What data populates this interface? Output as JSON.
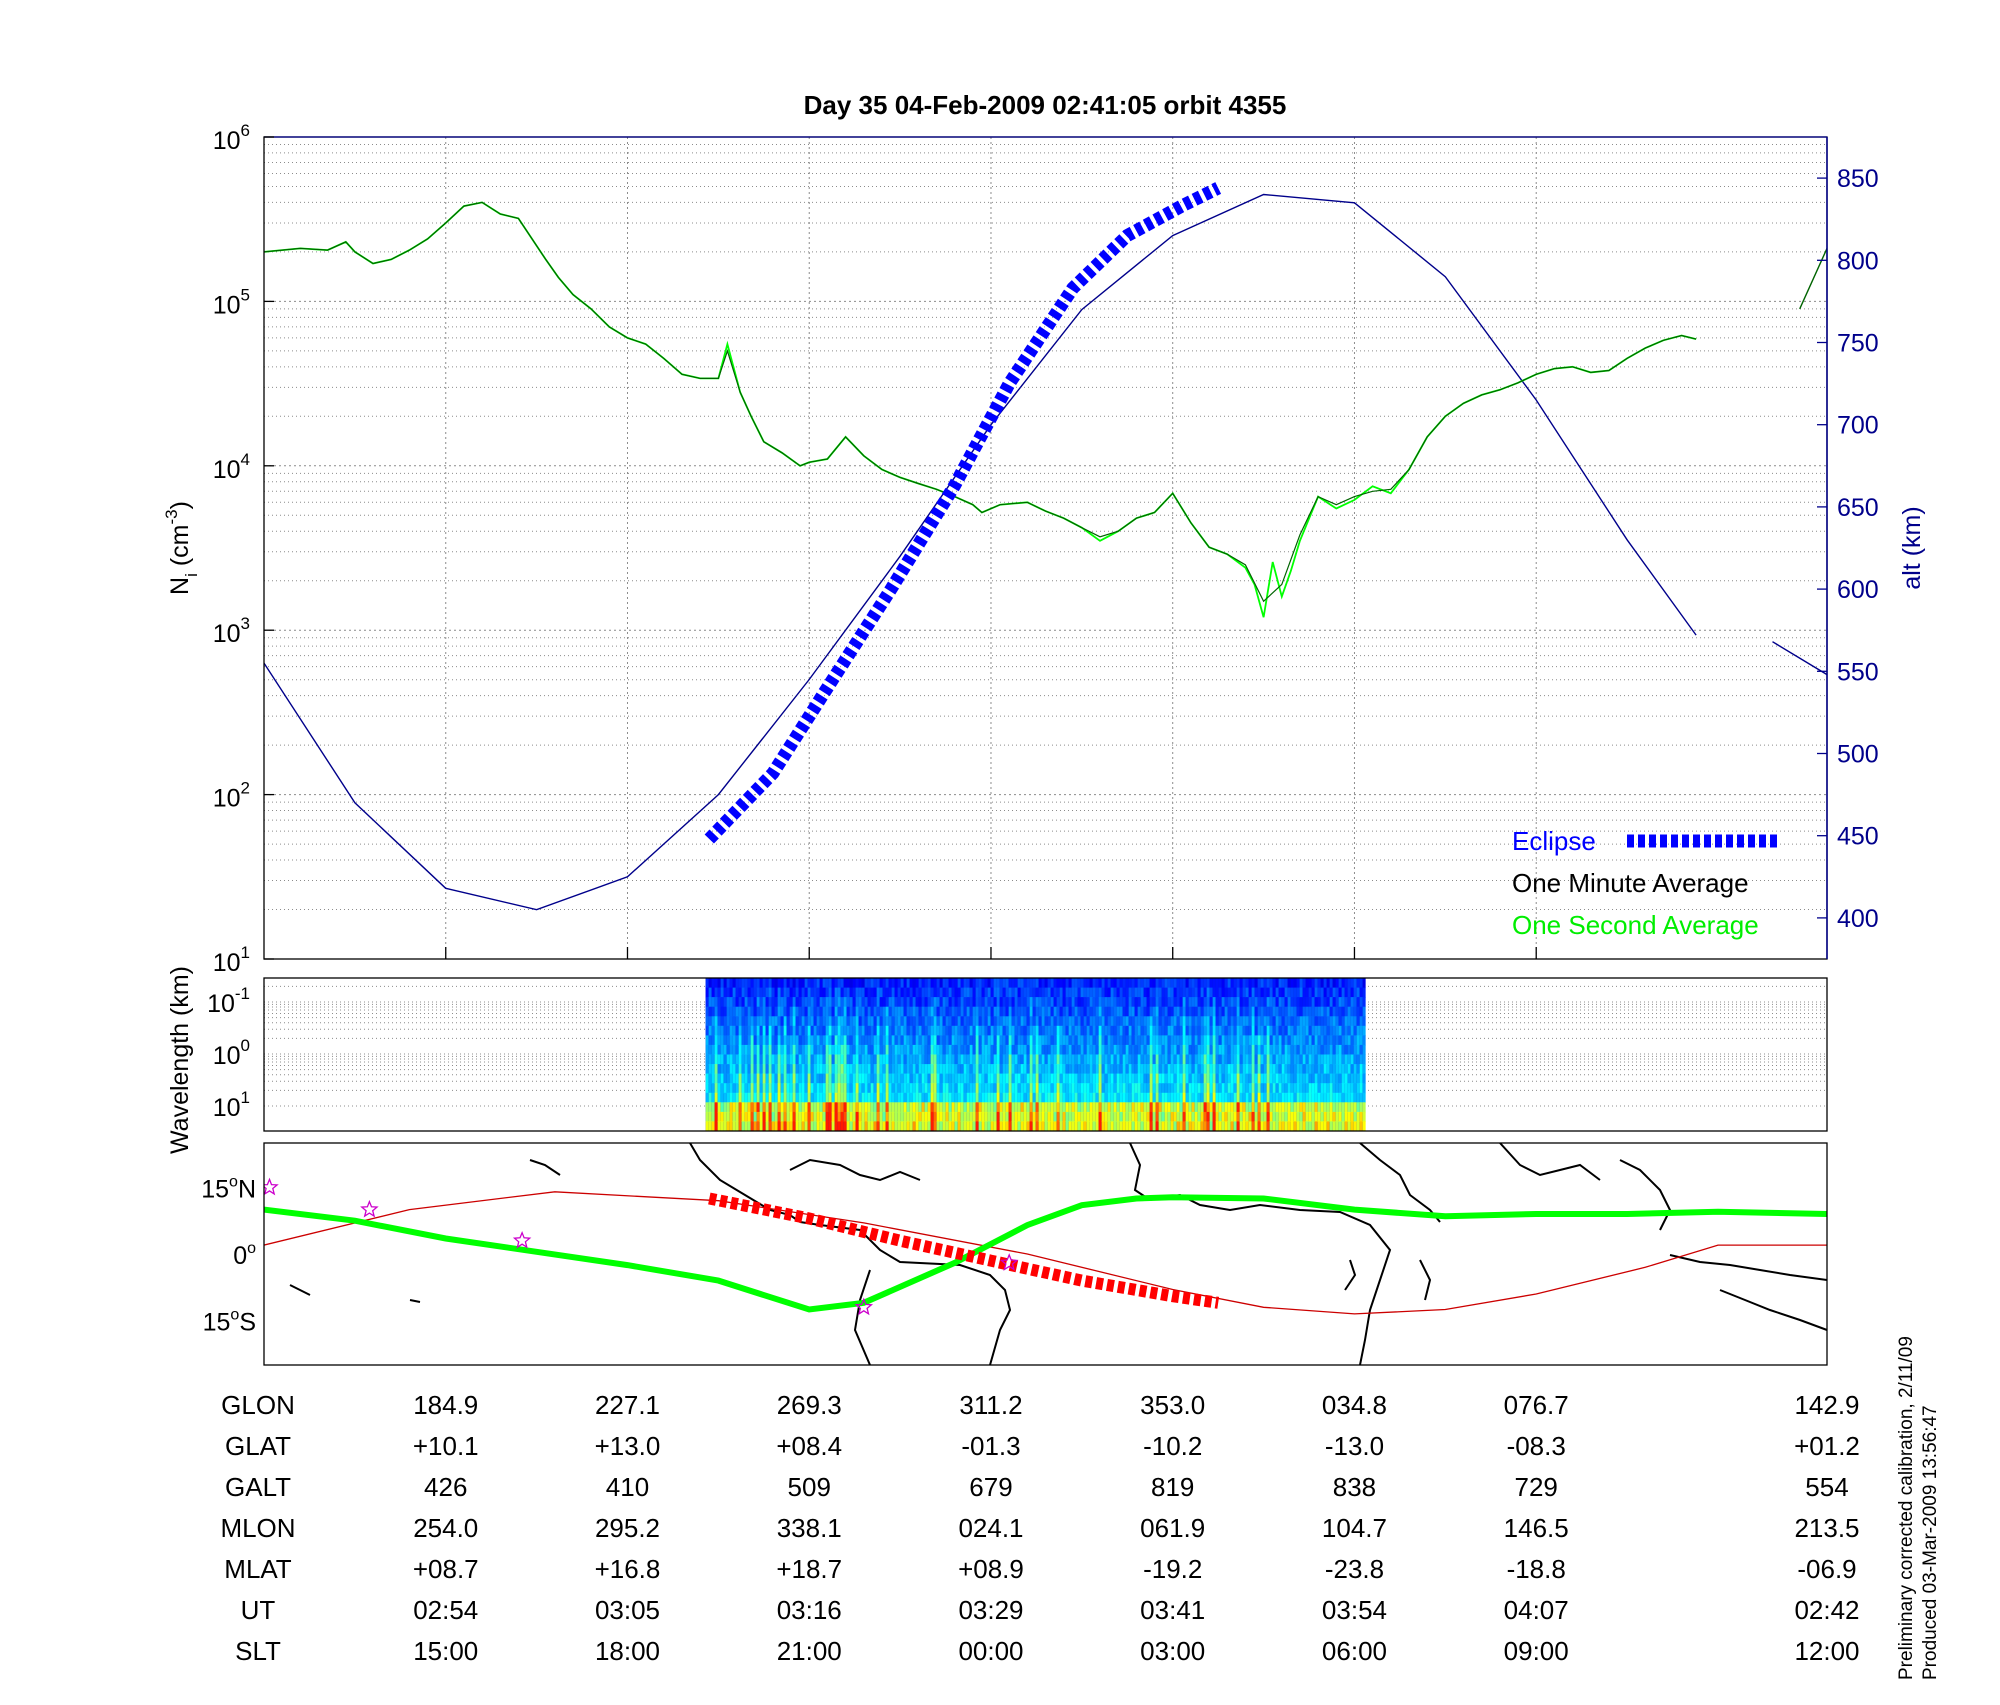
{
  "title": "Day 35  04-Feb-2009 02:41:05   orbit 4355",
  "footer": {
    "line1": "Preliminary corrected calibration, 2/11/09",
    "line2": "Produced 03-Mar-2009 13:56:47"
  },
  "colors": {
    "altitude": "#00008b",
    "eclipse": "#0000ff",
    "minute_avg": "#000000",
    "second_avg": "#00ff00",
    "trajectory": "#00ff00",
    "eclipse_map": "#ff0000",
    "magnetic_equator": "#cc0000",
    "stars": "#cc00cc"
  },
  "chart_data": [
    {
      "type": "line",
      "ylabel": "N_i (cm^-3)",
      "ylabel_main": "N",
      "ylabel_sub": "i",
      "ylabel_paren": "(cm",
      "ylabel_sup": "-3",
      "ylabel_close": ")",
      "yscale": "log",
      "ylim": [
        10,
        1000000
      ],
      "yticks": [
        {
          "base": "10",
          "exp": "6"
        },
        {
          "base": "10",
          "exp": "5"
        },
        {
          "base": "10",
          "exp": "4"
        },
        {
          "base": "10",
          "exp": "3"
        },
        {
          "base": "10",
          "exp": "2"
        },
        {
          "base": "10",
          "exp": "1"
        }
      ],
      "y2label": "alt (km)",
      "y2lim": [
        375,
        875
      ],
      "y2ticks": [
        "850",
        "800",
        "750",
        "700",
        "650",
        "600",
        "550",
        "500",
        "450",
        "400"
      ],
      "xlim": [
        0,
        8.6
      ],
      "grid": true,
      "legend": {
        "placement": "bottom-right",
        "eclipse": "Eclipse",
        "minute": "One Minute Average",
        "second": "One Second Average"
      },
      "series": [
        {
          "name": "One Minute Average",
          "x": [
            0,
            0.2,
            0.35,
            0.45,
            0.5,
            0.6,
            0.7,
            0.8,
            0.9,
            1.0,
            1.1,
            1.2,
            1.3,
            1.4,
            1.55,
            1.62,
            1.7,
            1.8,
            1.9,
            2.0,
            2.1,
            2.2,
            2.3,
            2.4,
            2.5,
            2.55,
            2.62,
            2.68,
            2.75,
            2.85,
            2.95,
            3.0,
            3.1,
            3.2,
            3.3,
            3.4,
            3.5,
            3.6,
            3.7,
            3.8,
            3.9,
            3.95,
            4.05,
            4.2,
            4.3,
            4.4,
            4.5,
            4.6,
            4.7,
            4.8,
            4.9,
            5.0,
            5.1,
            5.2,
            5.3,
            5.4,
            5.5,
            5.6,
            5.7,
            5.8,
            5.9,
            6.0,
            6.1,
            6.2,
            6.3,
            6.4,
            6.5,
            6.6,
            6.7,
            6.8,
            6.9,
            7.0,
            7.1,
            7.2,
            7.3,
            7.4,
            7.5,
            7.6,
            7.7,
            7.8,
            7.88
          ],
          "values": [
            200000,
            210000,
            205000,
            230000,
            200000,
            170000,
            180000,
            205000,
            240000,
            300000,
            380000,
            400000,
            340000,
            320000,
            180000,
            140000,
            110000,
            90000,
            70000,
            60000,
            55000,
            45000,
            36000,
            34000,
            34000,
            50000,
            28000,
            20000,
            14000,
            12000,
            10000,
            10500,
            11000,
            15000,
            11500,
            9500,
            8500,
            7800,
            7200,
            6500,
            5800,
            5200,
            5800,
            6000,
            5300,
            4800,
            4200,
            3700,
            4000,
            4800,
            5200,
            6800,
            4500,
            3200,
            2900,
            2500,
            1500,
            1900,
            3800,
            6500,
            5800,
            6500,
            7000,
            7200,
            9500,
            15000,
            20000,
            24000,
            27000,
            29000,
            32000,
            36000,
            39000,
            40000,
            37000,
            38000,
            45000,
            52000,
            58000,
            62000,
            59000
          ]
        },
        {
          "name": "One Second Average",
          "x": [
            0,
            0.2,
            0.35,
            0.45,
            0.5,
            0.6,
            0.7,
            0.8,
            0.9,
            1.0,
            1.1,
            1.2,
            1.3,
            1.4,
            1.55,
            1.62,
            1.7,
            1.8,
            1.9,
            2.0,
            2.1,
            2.2,
            2.3,
            2.4,
            2.5,
            2.55,
            2.62,
            2.68,
            2.75,
            2.85,
            2.95,
            3.0,
            3.1,
            3.2,
            3.3,
            3.4,
            3.5,
            3.6,
            3.7,
            3.8,
            3.9,
            3.95,
            4.05,
            4.2,
            4.3,
            4.4,
            4.5,
            4.6,
            4.7,
            4.8,
            4.9,
            5.0,
            5.1,
            5.2,
            5.3,
            5.4,
            5.45,
            5.5,
            5.55,
            5.6,
            5.65,
            5.7,
            5.8,
            5.9,
            6.0,
            6.1,
            6.2,
            6.3,
            6.4,
            6.5,
            6.6,
            6.7,
            6.8,
            6.9,
            7.0,
            7.1,
            7.2,
            7.3,
            7.4,
            7.5,
            7.6,
            7.7,
            7.8,
            7.88
          ],
          "values": [
            200000,
            210000,
            205000,
            230000,
            200000,
            170000,
            180000,
            205000,
            240000,
            300000,
            380000,
            400000,
            340000,
            320000,
            180000,
            140000,
            110000,
            90000,
            70000,
            60000,
            55000,
            45000,
            36000,
            34000,
            34000,
            55000,
            28000,
            20000,
            14000,
            12000,
            10000,
            10500,
            11000,
            15000,
            11500,
            9500,
            8500,
            7800,
            7200,
            6500,
            5800,
            5200,
            5800,
            6000,
            5300,
            4800,
            4200,
            3500,
            4000,
            4800,
            5200,
            6800,
            4500,
            3200,
            2900,
            2400,
            1900,
            1200,
            2600,
            1600,
            2300,
            3500,
            6500,
            5500,
            6200,
            7500,
            6800,
            9500,
            15000,
            20000,
            24000,
            27000,
            29000,
            32000,
            36000,
            39000,
            40000,
            37000,
            38000,
            45000,
            52000,
            58000,
            62000,
            59000
          ]
        },
        {
          "name": "alt (km)",
          "axis": "right",
          "x": [
            0,
            0.5,
            1.0,
            1.5,
            2.0,
            2.5,
            3.0,
            3.5,
            4.0,
            4.5,
            5.0,
            5.5,
            6.0,
            6.5,
            7.0,
            7.5,
            7.88
          ],
          "values": [
            555,
            470,
            418,
            405,
            425,
            475,
            545,
            620,
            700,
            770,
            815,
            840,
            835,
            790,
            715,
            630,
            572
          ]
        },
        {
          "name": "alt (km) continued",
          "axis": "right",
          "x": [
            8.3,
            8.6
          ],
          "values": [
            568,
            548
          ]
        },
        {
          "name": "Eclipse",
          "axis": "right",
          "x": [
            2.45,
            2.8,
            3.1,
            3.45,
            3.8,
            4.1,
            4.45,
            4.75,
            5.05,
            5.25
          ],
          "values": [
            448,
            488,
            540,
            600,
            663,
            725,
            783,
            815,
            833,
            844
          ]
        }
      ]
    },
    {
      "type": "heatmap",
      "ylabel": "Wavelength (km)",
      "yscale": "log",
      "yticks": [
        {
          "base": "10",
          "exp": "-1"
        },
        {
          "base": "10",
          "exp": "0"
        },
        {
          "base": "10",
          "exp": "1"
        }
      ],
      "x_range": [
        2.43,
        6.05
      ],
      "colormap": "jet",
      "grid": true
    },
    {
      "type": "map",
      "yticks": [
        "15°N",
        "0°",
        "15°S"
      ],
      "ytick_parts": [
        {
          "value": "15",
          "deg": "o",
          "hemi": "N"
        },
        {
          "value": "0",
          "deg": "o",
          "hemi": ""
        },
        {
          "value": "15",
          "deg": "o",
          "hemi": "S"
        }
      ],
      "ylim": [
        -25,
        25
      ],
      "trajectory": {
        "x": [
          0,
          0.5,
          1.0,
          1.5,
          2.0,
          2.5,
          3.0,
          3.3,
          3.8,
          4.2,
          4.5,
          4.8,
          5.0,
          5.5,
          6.0,
          6.5,
          7.0,
          7.5,
          8.0,
          8.6
        ],
        "lat": [
          10,
          7.5,
          3.5,
          0.5,
          -2.5,
          -6,
          -12.5,
          -11,
          -2,
          6.5,
          11,
          12.5,
          12.8,
          12.5,
          10,
          8.5,
          9,
          9,
          9.5,
          9
        ]
      },
      "eclipse_track": {
        "x": [
          2.45,
          3.0,
          3.5,
          4.0,
          4.5,
          5.0,
          5.25
        ],
        "lat": [
          12.5,
          8,
          3,
          -1.5,
          -6,
          -9.5,
          -11
        ]
      },
      "magnetic_equator": {
        "x": [
          0,
          0.8,
          1.6,
          2.5,
          3.3,
          4.2,
          5.0,
          5.5,
          6.0,
          6.5,
          7.0,
          7.6,
          8.0,
          8.6
        ],
        "lat": [
          2,
          10,
          14,
          12,
          7,
          0,
          -8,
          -12,
          -13.5,
          -12.5,
          -9,
          -3,
          2,
          2
        ]
      },
      "stars": {
        "x": [
          0.03,
          0.58,
          1.42,
          3.3,
          4.1
        ],
        "lat": [
          15,
          10,
          3,
          -12,
          -2
        ]
      }
    },
    {
      "type": "table",
      "rows": [
        {
          "label": "GLON",
          "values": [
            "184.9",
            "227.1",
            "269.3",
            "311.2",
            "353.0",
            "034.8",
            "076.7",
            "142.9"
          ]
        },
        {
          "label": "GLAT",
          "values": [
            "+10.1",
            "+13.0",
            "+08.4",
            "-01.3",
            "-10.2",
            "-13.0",
            "-08.3",
            "+01.2"
          ]
        },
        {
          "label": "GALT",
          "values": [
            "426",
            "410",
            "509",
            "679",
            "819",
            "838",
            "729",
            "554"
          ]
        },
        {
          "label": "MLON",
          "values": [
            "254.0",
            "295.2",
            "338.1",
            "024.1",
            "061.9",
            "104.7",
            "146.5",
            "213.5"
          ]
        },
        {
          "label": "MLAT",
          "values": [
            "+08.7",
            "+16.8",
            "+18.7",
            "+08.9",
            "-19.2",
            "-23.8",
            "-18.8",
            "-06.9"
          ]
        },
        {
          "label": "UT",
          "values": [
            "02:54",
            "03:05",
            "03:16",
            "03:29",
            "03:41",
            "03:54",
            "04:07",
            "02:42"
          ]
        },
        {
          "label": "SLT",
          "values": [
            "15:00",
            "18:00",
            "21:00",
            "00:00",
            "03:00",
            "06:00",
            "09:00",
            "12:00"
          ]
        }
      ],
      "column_positions": [
        1,
        2,
        3,
        4,
        5,
        6,
        7,
        8.6
      ]
    }
  ]
}
